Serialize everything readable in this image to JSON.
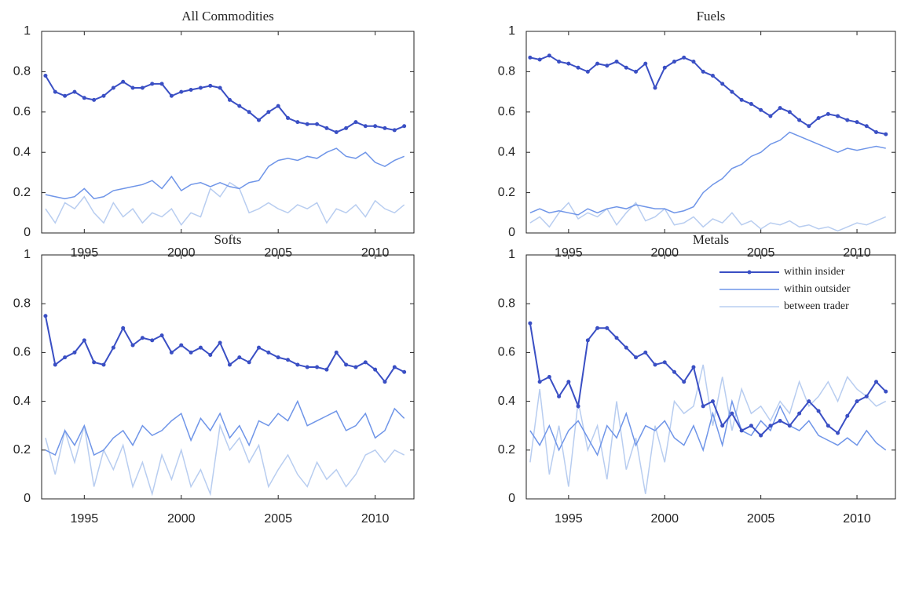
{
  "chart_data": [
    {
      "type": "line",
      "title": "All Commodities",
      "x": [
        1993,
        1993.5,
        1994,
        1994.5,
        1995,
        1995.5,
        1996,
        1996.5,
        1997,
        1997.5,
        1998,
        1998.5,
        1999,
        1999.5,
        2000,
        2000.5,
        2001,
        2001.5,
        2002,
        2002.5,
        2003,
        2003.5,
        2004,
        2004.5,
        2005,
        2005.5,
        2006,
        2006.5,
        2007,
        2007.5,
        2008,
        2008.5,
        2009,
        2009.5,
        2010,
        2010.5,
        2011,
        2011.5
      ],
      "series": [
        {
          "name": "within insider",
          "color": "#3a4fc4",
          "markers": true,
          "values": [
            0.78,
            0.7,
            0.68,
            0.7,
            0.67,
            0.66,
            0.68,
            0.72,
            0.75,
            0.72,
            0.72,
            0.74,
            0.74,
            0.68,
            0.7,
            0.71,
            0.72,
            0.73,
            0.72,
            0.66,
            0.63,
            0.6,
            0.56,
            0.6,
            0.63,
            0.57,
            0.55,
            0.54,
            0.54,
            0.52,
            0.5,
            0.52,
            0.55,
            0.53,
            0.53,
            0.52,
            0.51,
            0.53
          ]
        },
        {
          "name": "within outsider",
          "color": "#6f95e8",
          "markers": false,
          "values": [
            0.19,
            0.18,
            0.17,
            0.18,
            0.22,
            0.17,
            0.18,
            0.21,
            0.22,
            0.23,
            0.24,
            0.26,
            0.22,
            0.28,
            0.21,
            0.24,
            0.25,
            0.23,
            0.25,
            0.23,
            0.22,
            0.25,
            0.26,
            0.33,
            0.36,
            0.37,
            0.36,
            0.38,
            0.37,
            0.4,
            0.42,
            0.38,
            0.37,
            0.4,
            0.35,
            0.33,
            0.36,
            0.38
          ]
        },
        {
          "name": "between trader",
          "color": "#b8cdf0",
          "markers": false,
          "values": [
            0.12,
            0.05,
            0.15,
            0.12,
            0.18,
            0.1,
            0.05,
            0.15,
            0.08,
            0.12,
            0.05,
            0.1,
            0.08,
            0.12,
            0.04,
            0.1,
            0.08,
            0.22,
            0.18,
            0.25,
            0.22,
            0.1,
            0.12,
            0.15,
            0.12,
            0.1,
            0.14,
            0.12,
            0.15,
            0.05,
            0.12,
            0.1,
            0.14,
            0.08,
            0.16,
            0.12,
            0.1,
            0.14
          ]
        }
      ],
      "xlim": [
        1992.8,
        2012
      ],
      "ylim": [
        0,
        1
      ],
      "xticks": [
        1995,
        2000,
        2005,
        2010
      ],
      "yticks": [
        0,
        0.2,
        0.4,
        0.6,
        0.8,
        1
      ]
    },
    {
      "type": "line",
      "title": "Fuels",
      "x": [
        1993,
        1993.5,
        1994,
        1994.5,
        1995,
        1995.5,
        1996,
        1996.5,
        1997,
        1997.5,
        1998,
        1998.5,
        1999,
        1999.5,
        2000,
        2000.5,
        2001,
        2001.5,
        2002,
        2002.5,
        2003,
        2003.5,
        2004,
        2004.5,
        2005,
        2005.5,
        2006,
        2006.5,
        2007,
        2007.5,
        2008,
        2008.5,
        2009,
        2009.5,
        2010,
        2010.5,
        2011,
        2011.5
      ],
      "series": [
        {
          "name": "within insider",
          "color": "#3a4fc4",
          "markers": true,
          "values": [
            0.87,
            0.86,
            0.88,
            0.85,
            0.84,
            0.82,
            0.8,
            0.84,
            0.83,
            0.85,
            0.82,
            0.8,
            0.84,
            0.72,
            0.82,
            0.85,
            0.87,
            0.85,
            0.8,
            0.78,
            0.74,
            0.7,
            0.66,
            0.64,
            0.61,
            0.58,
            0.62,
            0.6,
            0.56,
            0.53,
            0.57,
            0.59,
            0.58,
            0.56,
            0.55,
            0.53,
            0.5,
            0.49
          ]
        },
        {
          "name": "within outsider",
          "color": "#6f95e8",
          "markers": false,
          "values": [
            0.1,
            0.12,
            0.1,
            0.11,
            0.1,
            0.09,
            0.12,
            0.1,
            0.12,
            0.13,
            0.12,
            0.14,
            0.13,
            0.12,
            0.12,
            0.1,
            0.11,
            0.13,
            0.2,
            0.24,
            0.27,
            0.32,
            0.34,
            0.38,
            0.4,
            0.44,
            0.46,
            0.5,
            0.48,
            0.46,
            0.44,
            0.42,
            0.4,
            0.42,
            0.41,
            0.42,
            0.43,
            0.42
          ]
        },
        {
          "name": "between trader",
          "color": "#b8cdf0",
          "markers": false,
          "values": [
            0.05,
            0.08,
            0.03,
            0.1,
            0.15,
            0.07,
            0.1,
            0.08,
            0.12,
            0.04,
            0.1,
            0.15,
            0.06,
            0.08,
            0.12,
            0.04,
            0.05,
            0.08,
            0.03,
            0.07,
            0.05,
            0.1,
            0.04,
            0.06,
            0.02,
            0.05,
            0.04,
            0.06,
            0.03,
            0.04,
            0.02,
            0.03,
            0.01,
            0.03,
            0.05,
            0.04,
            0.06,
            0.08
          ]
        }
      ],
      "xlim": [
        1992.8,
        2012
      ],
      "ylim": [
        0,
        1
      ],
      "xticks": [
        1995,
        2000,
        2005,
        2010
      ],
      "yticks": [
        0,
        0.2,
        0.4,
        0.6,
        0.8,
        1
      ]
    },
    {
      "type": "line",
      "title": "Softs",
      "x": [
        1993,
        1993.5,
        1994,
        1994.5,
        1995,
        1995.5,
        1996,
        1996.5,
        1997,
        1997.5,
        1998,
        1998.5,
        1999,
        1999.5,
        2000,
        2000.5,
        2001,
        2001.5,
        2002,
        2002.5,
        2003,
        2003.5,
        2004,
        2004.5,
        2005,
        2005.5,
        2006,
        2006.5,
        2007,
        2007.5,
        2008,
        2008.5,
        2009,
        2009.5,
        2010,
        2010.5,
        2011,
        2011.5
      ],
      "series": [
        {
          "name": "within insider",
          "color": "#3a4fc4",
          "markers": true,
          "values": [
            0.75,
            0.55,
            0.58,
            0.6,
            0.65,
            0.56,
            0.55,
            0.62,
            0.7,
            0.63,
            0.66,
            0.65,
            0.67,
            0.6,
            0.63,
            0.6,
            0.62,
            0.59,
            0.64,
            0.55,
            0.58,
            0.56,
            0.62,
            0.6,
            0.58,
            0.57,
            0.55,
            0.54,
            0.54,
            0.53,
            0.6,
            0.55,
            0.54,
            0.56,
            0.53,
            0.48,
            0.54,
            0.52
          ]
        },
        {
          "name": "within outsider",
          "color": "#6f95e8",
          "markers": false,
          "values": [
            0.2,
            0.18,
            0.28,
            0.22,
            0.3,
            0.18,
            0.2,
            0.25,
            0.28,
            0.22,
            0.3,
            0.26,
            0.28,
            0.32,
            0.35,
            0.24,
            0.33,
            0.28,
            0.35,
            0.25,
            0.3,
            0.22,
            0.32,
            0.3,
            0.35,
            0.32,
            0.4,
            0.3,
            0.32,
            0.34,
            0.36,
            0.28,
            0.3,
            0.35,
            0.25,
            0.28,
            0.37,
            0.33
          ]
        },
        {
          "name": "between trader",
          "color": "#b8cdf0",
          "markers": false,
          "values": [
            0.25,
            0.1,
            0.28,
            0.15,
            0.3,
            0.05,
            0.2,
            0.12,
            0.22,
            0.05,
            0.15,
            0.02,
            0.18,
            0.08,
            0.2,
            0.05,
            0.12,
            0.02,
            0.3,
            0.2,
            0.25,
            0.15,
            0.22,
            0.05,
            0.12,
            0.18,
            0.1,
            0.05,
            0.15,
            0.08,
            0.12,
            0.05,
            0.1,
            0.18,
            0.2,
            0.15,
            0.2,
            0.18
          ]
        }
      ],
      "xlim": [
        1992.8,
        2012
      ],
      "ylim": [
        0,
        1
      ],
      "xticks": [
        1995,
        2000,
        2005,
        2010
      ],
      "yticks": [
        0,
        0.2,
        0.4,
        0.6,
        0.8,
        1
      ]
    },
    {
      "type": "line",
      "title": "Metals",
      "x": [
        1993,
        1993.5,
        1994,
        1994.5,
        1995,
        1995.5,
        1996,
        1996.5,
        1997,
        1997.5,
        1998,
        1998.5,
        1999,
        1999.5,
        2000,
        2000.5,
        2001,
        2001.5,
        2002,
        2002.5,
        2003,
        2003.5,
        2004,
        2004.5,
        2005,
        2005.5,
        2006,
        2006.5,
        2007,
        2007.5,
        2008,
        2008.5,
        2009,
        2009.5,
        2010,
        2010.5,
        2011,
        2011.5
      ],
      "series": [
        {
          "name": "within insider",
          "color": "#3a4fc4",
          "markers": true,
          "values": [
            0.72,
            0.48,
            0.5,
            0.42,
            0.48,
            0.38,
            0.65,
            0.7,
            0.7,
            0.66,
            0.62,
            0.58,
            0.6,
            0.55,
            0.56,
            0.52,
            0.48,
            0.54,
            0.38,
            0.4,
            0.3,
            0.35,
            0.28,
            0.3,
            0.26,
            0.3,
            0.32,
            0.3,
            0.35,
            0.4,
            0.36,
            0.3,
            0.27,
            0.34,
            0.4,
            0.42,
            0.48,
            0.44
          ]
        },
        {
          "name": "within outsider",
          "color": "#6f95e8",
          "markers": false,
          "values": [
            0.28,
            0.22,
            0.3,
            0.2,
            0.28,
            0.32,
            0.25,
            0.18,
            0.3,
            0.25,
            0.35,
            0.22,
            0.3,
            0.28,
            0.32,
            0.25,
            0.22,
            0.3,
            0.2,
            0.35,
            0.22,
            0.4,
            0.28,
            0.26,
            0.32,
            0.28,
            0.38,
            0.3,
            0.28,
            0.32,
            0.26,
            0.24,
            0.22,
            0.25,
            0.22,
            0.28,
            0.23,
            0.2
          ]
        },
        {
          "name": "between trader",
          "color": "#b8cdf0",
          "markers": false,
          "values": [
            0.15,
            0.45,
            0.1,
            0.3,
            0.05,
            0.4,
            0.2,
            0.3,
            0.08,
            0.4,
            0.12,
            0.25,
            0.02,
            0.3,
            0.15,
            0.4,
            0.35,
            0.38,
            0.55,
            0.3,
            0.5,
            0.28,
            0.45,
            0.35,
            0.38,
            0.32,
            0.4,
            0.35,
            0.48,
            0.38,
            0.42,
            0.48,
            0.4,
            0.5,
            0.45,
            0.42,
            0.38,
            0.4
          ]
        }
      ],
      "xlim": [
        1992.8,
        2012
      ],
      "ylim": [
        0,
        1
      ],
      "xticks": [
        1995,
        2000,
        2005,
        2010
      ],
      "yticks": [
        0,
        0.2,
        0.4,
        0.6,
        0.8,
        1
      ],
      "legend": "upper right"
    }
  ]
}
